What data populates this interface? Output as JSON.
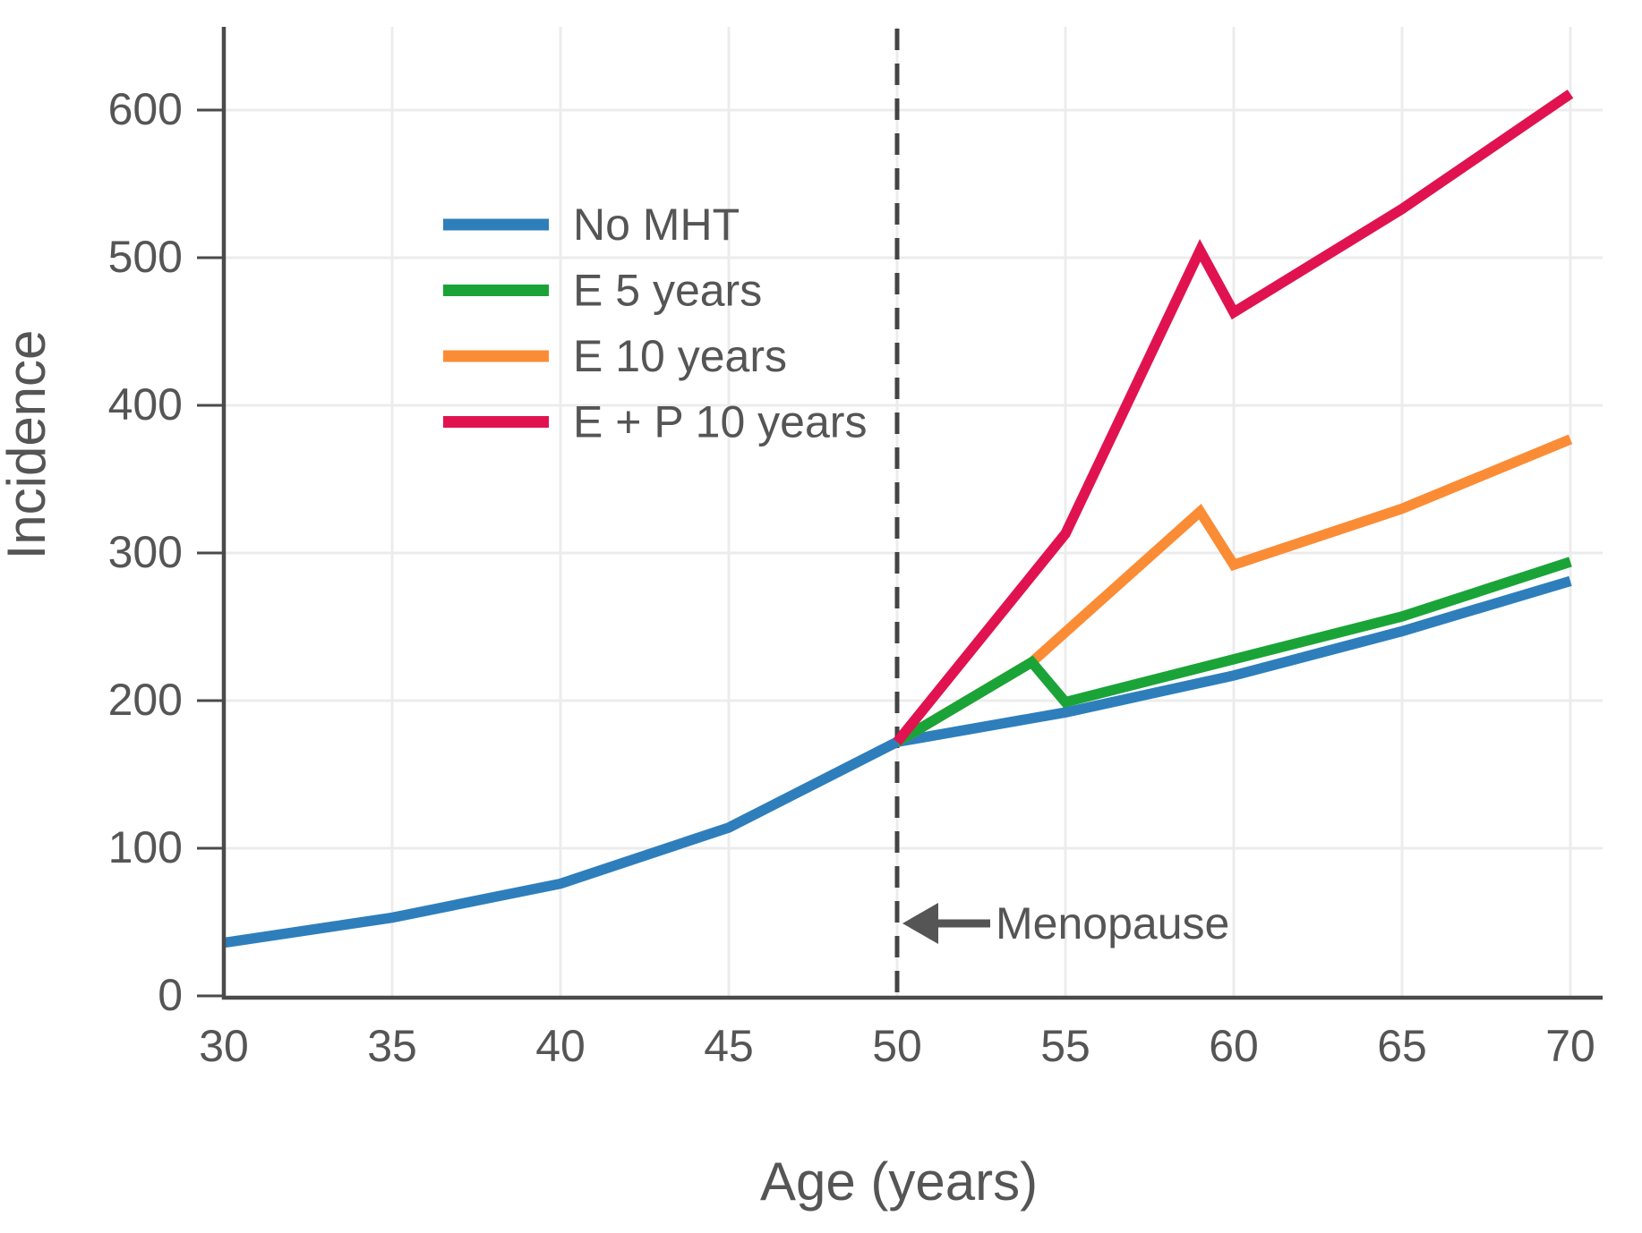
{
  "figure": {
    "background": "#ffffff",
    "grid_color": "#ececec",
    "axis_color": "#4a4a4a",
    "text_color": "#555555",
    "dashed_line_color": "#444444"
  },
  "chart_data": {
    "type": "line",
    "title": "",
    "xlabel": "Age (years)",
    "ylabel": "Incidence",
    "x_ticks": [
      30,
      35,
      40,
      45,
      50,
      55,
      60,
      65,
      70
    ],
    "y_ticks": [
      0,
      100,
      200,
      300,
      400,
      500,
      600
    ],
    "xlim": [
      30,
      71
    ],
    "ylim": [
      0,
      655
    ],
    "grid": true,
    "legend_position": "upper-left-inside",
    "draw_order": [
      0,
      2,
      1,
      3
    ],
    "series": [
      {
        "name": "No MHT",
        "color": "#2e7ebc",
        "points": [
          [
            30,
            36
          ],
          [
            35,
            53
          ],
          [
            40,
            76
          ],
          [
            45,
            114
          ],
          [
            50,
            172
          ],
          [
            55,
            192
          ],
          [
            60,
            217
          ],
          [
            65,
            247
          ],
          [
            70,
            281
          ]
        ]
      },
      {
        "name": "E 5 years",
        "color": "#1aa438",
        "points": [
          [
            50,
            172
          ],
          [
            54,
            226
          ],
          [
            55,
            199
          ],
          [
            60,
            228
          ],
          [
            65,
            257
          ],
          [
            70,
            294
          ]
        ]
      },
      {
        "name": "E 10 years",
        "color": "#fb8c36",
        "points": [
          [
            50,
            172
          ],
          [
            54,
            226
          ],
          [
            59,
            328
          ],
          [
            60,
            292
          ],
          [
            65,
            330
          ],
          [
            70,
            377
          ]
        ]
      },
      {
        "name": "E + P 10 years",
        "color": "#e01350",
        "points": [
          [
            50,
            172
          ],
          [
            55,
            313
          ],
          [
            59,
            505
          ],
          [
            60,
            463
          ],
          [
            65,
            533
          ],
          [
            70,
            611
          ]
        ]
      }
    ],
    "reference_line": {
      "x": 50,
      "style": "dashed"
    },
    "annotation": {
      "text": "Menopause",
      "arrow": "left",
      "at_x": 50
    }
  }
}
